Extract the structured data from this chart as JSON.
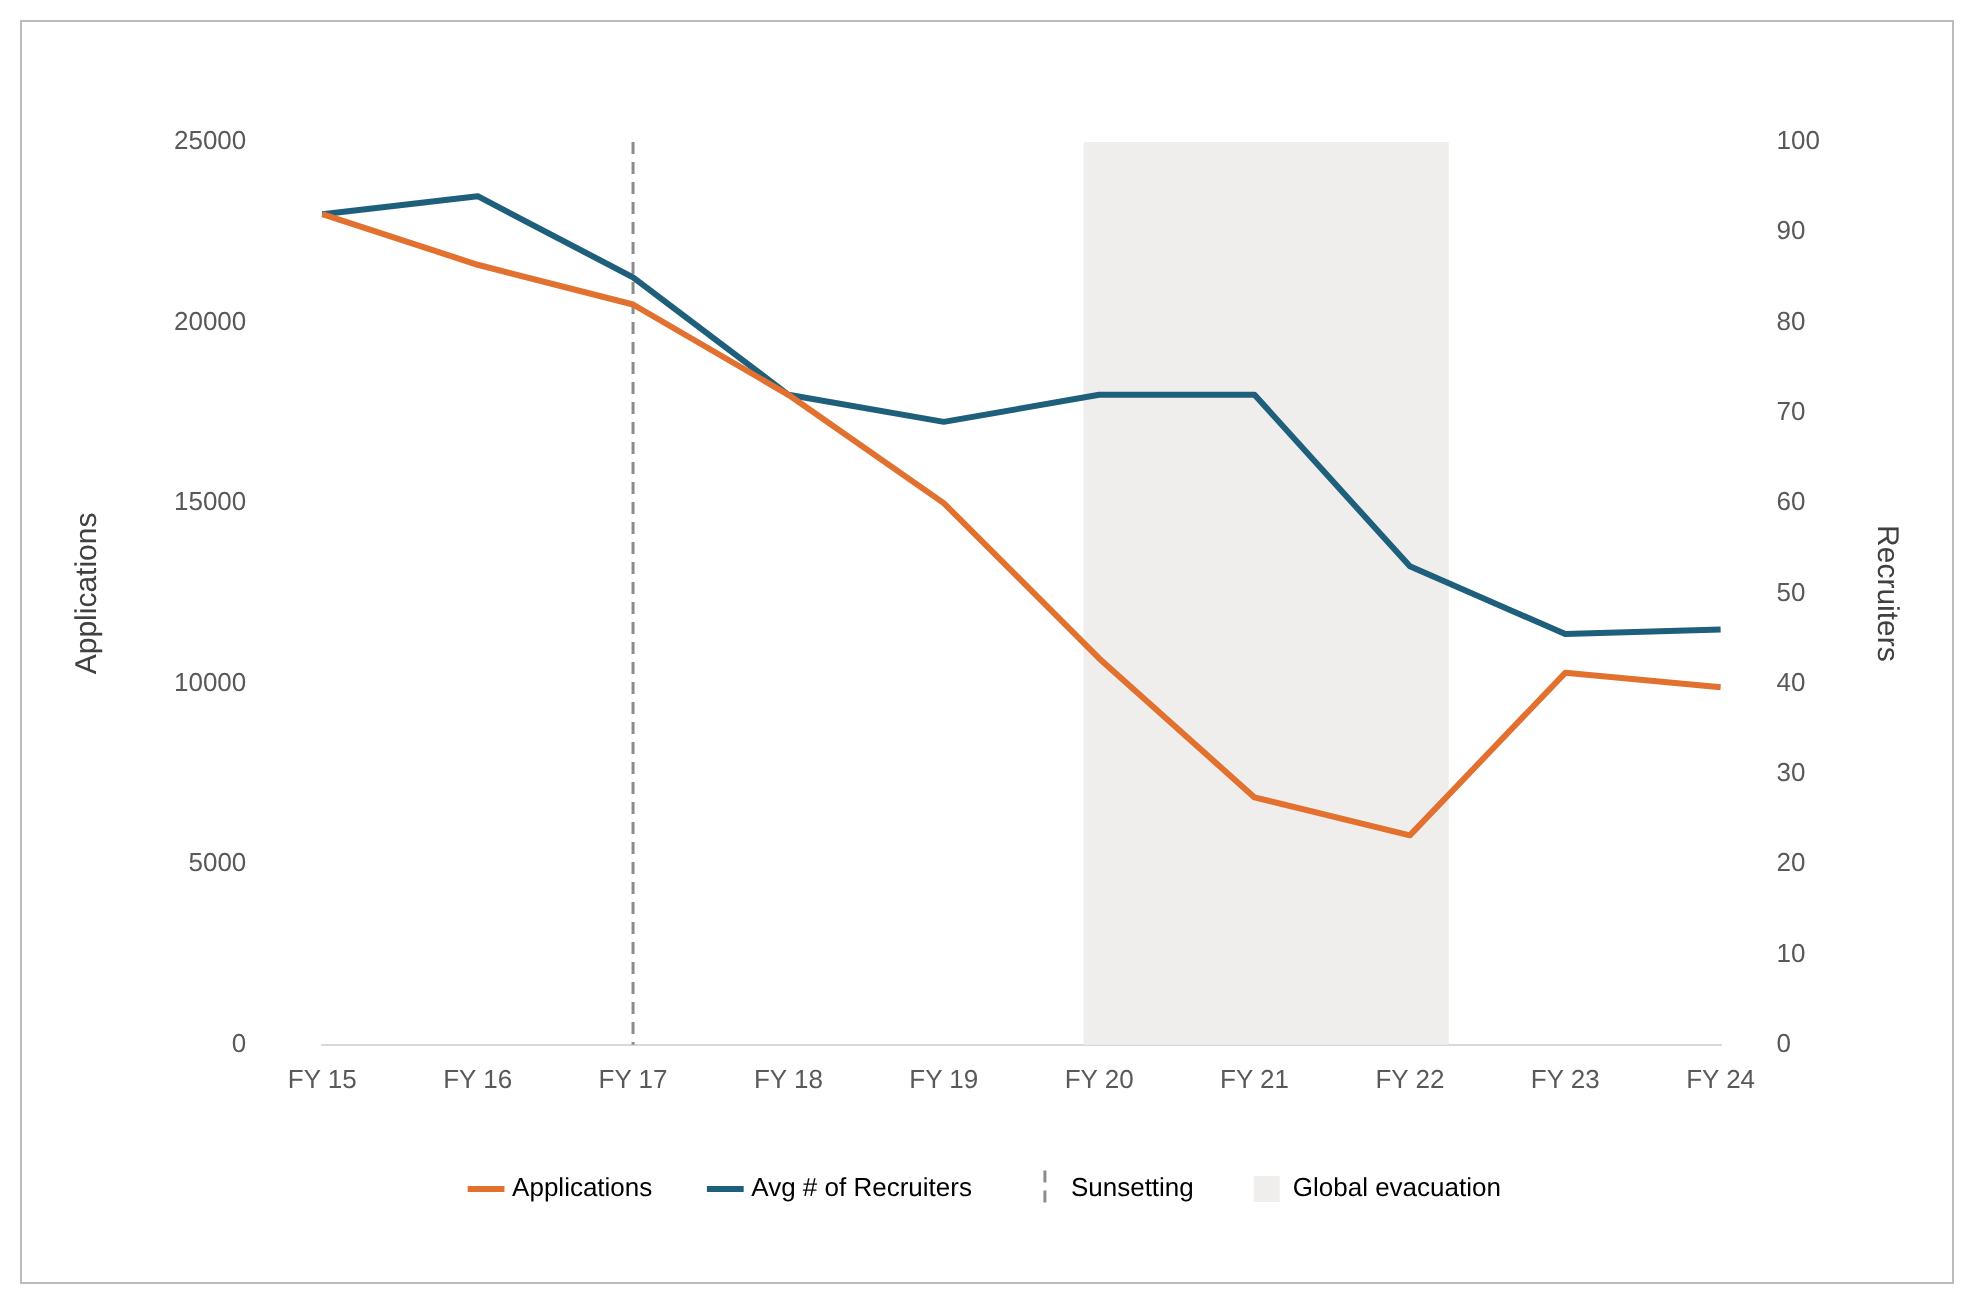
{
  "chart_data": {
    "type": "line",
    "ylabel": "Applications",
    "y2label": "Recruiters",
    "categories": [
      "FY 15",
      "FY 16",
      "FY 17",
      "FY 18",
      "FY 19",
      "FY 20",
      "FY 21",
      "FY 22",
      "FY 23",
      "FY 24"
    ],
    "series": [
      {
        "name": "Applications",
        "color": "#e2702f",
        "values": [
          23000,
          21600,
          20500,
          18000,
          15000,
          10700,
          6850,
          5800,
          10300,
          9900
        ]
      },
      {
        "name": "Avg # of Recruiters",
        "color": "#1e5f7b",
        "axis": "y2",
        "values": [
          92,
          94,
          85,
          72,
          69,
          72,
          72,
          53,
          45.5,
          46
        ]
      }
    ],
    "ylim": [
      0,
      25000
    ],
    "yticks": [
      0,
      5000,
      10000,
      15000,
      20000,
      25000
    ],
    "y2lim": [
      0,
      100
    ],
    "y2ticks": [
      0,
      10,
      20,
      30,
      40,
      50,
      60,
      70,
      80,
      90,
      100
    ],
    "ref_lines": [
      {
        "axis": "x",
        "value": "FY 17",
        "label": "Sunsetting",
        "color": "#8c8c8c",
        "line_style": "dashed"
      }
    ],
    "bands": [
      {
        "axis": "x",
        "from": "FY 20",
        "to": "FY 22",
        "label": "Global evacuation",
        "color": "#efeeec"
      }
    ],
    "grid": false,
    "legend": "bottom",
    "marker": "none",
    "line_style": "solid"
  }
}
